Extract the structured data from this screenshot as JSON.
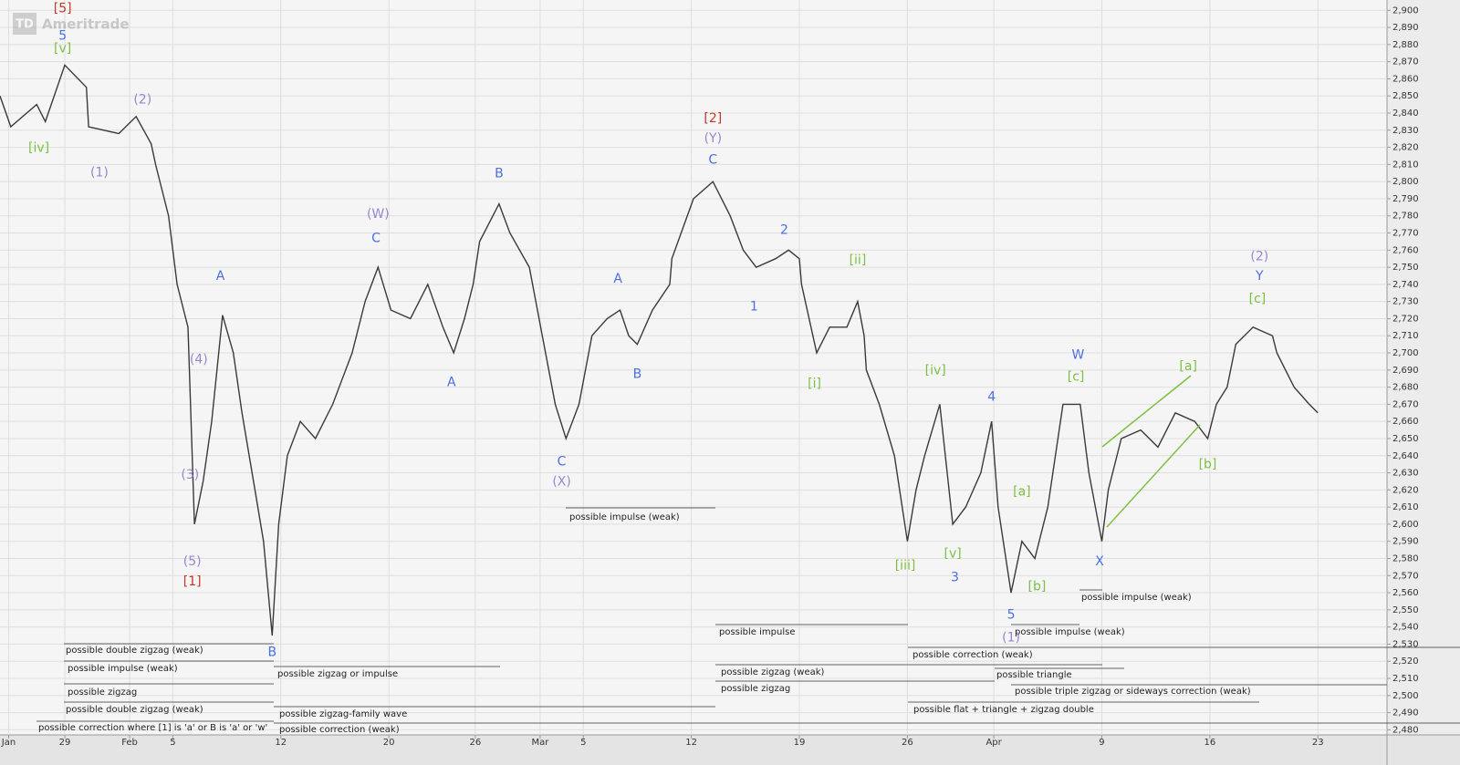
{
  "chart_data": {
    "type": "line",
    "logo": "Ameritrade",
    "logo_mark": "TD",
    "color": "#3a3a3a",
    "grid": true,
    "xlim": [
      -3,
      61.2
    ],
    "ylim": [
      2477,
      2906
    ],
    "xticks": [
      {
        "value": -2.6,
        "label": "Jan"
      },
      {
        "value": 0,
        "label": "29"
      },
      {
        "value": 3,
        "label": "Feb"
      },
      {
        "value": 5,
        "label": "5"
      },
      {
        "value": 10,
        "label": "12"
      },
      {
        "value": 15,
        "label": "20"
      },
      {
        "value": 19,
        "label": "26"
      },
      {
        "value": 22,
        "label": "Mar"
      },
      {
        "value": 24,
        "label": "5"
      },
      {
        "value": 29,
        "label": "12"
      },
      {
        "value": 34,
        "label": "19"
      },
      {
        "value": 39,
        "label": "26"
      },
      {
        "value": 43,
        "label": "Apr"
      },
      {
        "value": 48,
        "label": "9"
      },
      {
        "value": 53,
        "label": "16"
      },
      {
        "value": 58,
        "label": "23"
      }
    ],
    "yticks": [
      {
        "value": 2480,
        "label": "2,480"
      },
      {
        "value": 2490,
        "label": "2,490"
      },
      {
        "value": 2500,
        "label": "2,500"
      },
      {
        "value": 2510,
        "label": "2,510"
      },
      {
        "value": 2520,
        "label": "2,520"
      },
      {
        "value": 2530,
        "label": "2,530"
      },
      {
        "value": 2540,
        "label": "2,540"
      },
      {
        "value": 2550,
        "label": "2,550"
      },
      {
        "value": 2560,
        "label": "2,560"
      },
      {
        "value": 2570,
        "label": "2,570"
      },
      {
        "value": 2580,
        "label": "2,580"
      },
      {
        "value": 2590,
        "label": "2,590"
      },
      {
        "value": 2600,
        "label": "2,600"
      },
      {
        "value": 2610,
        "label": "2,610"
      },
      {
        "value": 2620,
        "label": "2,620"
      },
      {
        "value": 2630,
        "label": "2,630"
      },
      {
        "value": 2640,
        "label": "2,640"
      },
      {
        "value": 2650,
        "label": "2,650"
      },
      {
        "value": 2660,
        "label": "2,660"
      },
      {
        "value": 2670,
        "label": "2,670"
      },
      {
        "value": 2680,
        "label": "2,680"
      },
      {
        "value": 2690,
        "label": "2,690"
      },
      {
        "value": 2700,
        "label": "2,700"
      },
      {
        "value": 2710,
        "label": "2,710"
      },
      {
        "value": 2720,
        "label": "2,720"
      },
      {
        "value": 2730,
        "label": "2,730"
      },
      {
        "value": 2740,
        "label": "2,740"
      },
      {
        "value": 2750,
        "label": "2,750"
      },
      {
        "value": 2760,
        "label": "2,760"
      },
      {
        "value": 2770,
        "label": "2,770"
      },
      {
        "value": 2780,
        "label": "2,780"
      },
      {
        "value": 2790,
        "label": "2,790"
      },
      {
        "value": 2800,
        "label": "2,800"
      },
      {
        "value": 2810,
        "label": "2,810"
      },
      {
        "value": 2820,
        "label": "2,820"
      },
      {
        "value": 2830,
        "label": "2,830"
      },
      {
        "value": 2840,
        "label": "2,840"
      },
      {
        "value": 2850,
        "label": "2,850"
      },
      {
        "value": 2860,
        "label": "2,860"
      },
      {
        "value": 2870,
        "label": "2,870"
      },
      {
        "value": 2880,
        "label": "2,880"
      },
      {
        "value": 2890,
        "label": "2,890"
      },
      {
        "value": 2900,
        "label": "2,900"
      }
    ],
    "x": [
      -3.0,
      -2.5,
      -1.3,
      -0.9,
      0.0,
      1.0,
      1.1,
      2.5,
      3.3,
      4.0,
      4.2,
      4.8,
      5.2,
      5.7,
      6.0,
      6.4,
      6.8,
      7.3,
      7.8,
      8.2,
      8.8,
      9.2,
      9.6,
      9.9,
      10.3,
      10.9,
      11.6,
      12.4,
      13.3,
      13.9,
      14.5,
      15.1,
      16.0,
      16.8,
      17.5,
      18.0,
      18.5,
      18.9,
      19.2,
      20.1,
      20.6,
      21.5,
      22.1,
      22.7,
      23.2,
      23.8,
      24.4,
      25.1,
      25.7,
      26.1,
      26.5,
      27.2,
      28.0,
      28.1,
      29.1,
      30.0,
      30.8,
      31.4,
      32.0,
      32.9,
      33.5,
      34.0,
      34.1,
      34.8,
      35.4,
      36.2,
      36.7,
      37.0,
      37.1,
      37.7,
      38.4,
      39.0,
      39.4,
      39.8,
      40.5,
      41.1,
      41.7,
      42.4,
      42.9,
      43.2,
      43.8,
      44.3,
      44.9,
      45.5,
      46.2,
      47.0,
      47.4,
      48.0,
      48.3,
      48.9,
      49.8,
      50.6,
      51.4,
      52.3,
      52.9,
      53.3,
      53.8,
      54.2,
      55.0,
      55.9,
      56.1,
      56.9,
      57.6,
      58.0
    ],
    "values": [
      2850,
      2832,
      2845,
      2835,
      2868,
      2855,
      2832,
      2828,
      2838,
      2822,
      2810,
      2780,
      2740,
      2715,
      2600,
      2625,
      2660,
      2722,
      2700,
      2665,
      2620,
      2590,
      2535,
      2600,
      2640,
      2660,
      2650,
      2670,
      2700,
      2730,
      2750,
      2725,
      2720,
      2740,
      2715,
      2700,
      2720,
      2740,
      2765,
      2787,
      2770,
      2750,
      2710,
      2670,
      2650,
      2670,
      2710,
      2720,
      2725,
      2710,
      2705,
      2725,
      2740,
      2755,
      2790,
      2800,
      2780,
      2760,
      2750,
      2755,
      2760,
      2755,
      2740,
      2700,
      2715,
      2715,
      2730,
      2710,
      2690,
      2670,
      2640,
      2590,
      2620,
      2640,
      2670,
      2600,
      2610,
      2630,
      2660,
      2610,
      2560,
      2590,
      2580,
      2610,
      2670,
      2670,
      2630,
      2590,
      2620,
      2650,
      2655,
      2645,
      2665,
      2660,
      2650,
      2670,
      2680,
      2705,
      2715,
      2710,
      2700,
      2680,
      2670,
      2665
    ],
    "annotations": [
      {
        "text": "[5]",
        "x": -0.1,
        "y": 2901,
        "color": "#c0392b"
      },
      {
        "text": "5",
        "x": -0.1,
        "y": 2885.1,
        "color": "#4a6fe3"
      },
      {
        "text": "[v]",
        "x": -0.1,
        "y": 2877.6,
        "color": "#7dc142"
      },
      {
        "text": "[iv]",
        "x": -1.2,
        "y": 2819.6,
        "color": "#7dc142"
      },
      {
        "text": "(1)",
        "x": 1.6,
        "y": 2805.2,
        "color": "#9a86cf"
      },
      {
        "text": "(2)",
        "x": 3.6,
        "y": 2847.8,
        "color": "#9a86cf"
      },
      {
        "text": "A",
        "x": 7.2,
        "y": 2744.6,
        "color": "#4a6fe3"
      },
      {
        "text": "(4)",
        "x": 6.2,
        "y": 2696.1,
        "color": "#9a86cf"
      },
      {
        "text": "(3)",
        "x": 5.8,
        "y": 2628.6,
        "color": "#9a86cf"
      },
      {
        "text": "(5)",
        "x": 5.9,
        "y": 2578.0,
        "color": "#9a86cf"
      },
      {
        "text": "[1]",
        "x": 5.9,
        "y": 2566.3,
        "color": "#c0392b"
      },
      {
        "text": "B",
        "x": 9.6,
        "y": 2525.3,
        "color": "#4a6fe3"
      },
      {
        "text": "(W)",
        "x": 14.5,
        "y": 2780.8,
        "color": "#9a86cf"
      },
      {
        "text": "C",
        "x": 14.4,
        "y": 2766.9,
        "color": "#4a6fe3"
      },
      {
        "text": "A",
        "x": 17.9,
        "y": 2682.8,
        "color": "#4a6fe3"
      },
      {
        "text": "B",
        "x": 20.1,
        "y": 2804.7,
        "color": "#4a6fe3"
      },
      {
        "text": "C",
        "x": 23.0,
        "y": 2636.5,
        "color": "#4a6fe3"
      },
      {
        "text": "(X)",
        "x": 23.0,
        "y": 2624.8,
        "color": "#9a86cf"
      },
      {
        "text": "A",
        "x": 25.6,
        "y": 2743.0,
        "color": "#4a6fe3"
      },
      {
        "text": "B",
        "x": 26.5,
        "y": 2687.6,
        "color": "#4a6fe3"
      },
      {
        "text": "[2]",
        "x": 30.0,
        "y": 2836.7,
        "color": "#c0392b"
      },
      {
        "text": "(Y)",
        "x": 30.0,
        "y": 2825.0,
        "color": "#9a86cf"
      },
      {
        "text": "C",
        "x": 30.0,
        "y": 2812.7,
        "color": "#4a6fe3"
      },
      {
        "text": "2",
        "x": 33.3,
        "y": 2771.7,
        "color": "#4a6fe3"
      },
      {
        "text": "1",
        "x": 31.9,
        "y": 2727.0,
        "color": "#4a6fe3"
      },
      {
        "text": "[ii]",
        "x": 36.7,
        "y": 2754.1,
        "color": "#7dc142"
      },
      {
        "text": "[i]",
        "x": 34.7,
        "y": 2681.8,
        "color": "#7dc142"
      },
      {
        "text": "[iii]",
        "x": 38.9,
        "y": 2575.8,
        "color": "#7dc142"
      },
      {
        "text": "[iv]",
        "x": 40.3,
        "y": 2689.7,
        "color": "#7dc142"
      },
      {
        "text": "[v]",
        "x": 41.1,
        "y": 2582.7,
        "color": "#7dc142"
      },
      {
        "text": "3",
        "x": 41.2,
        "y": 2568.9,
        "color": "#4a6fe3"
      },
      {
        "text": "4",
        "x": 42.9,
        "y": 2674.3,
        "color": "#4a6fe3"
      },
      {
        "text": "5",
        "x": 43.8,
        "y": 2547.1,
        "color": "#4a6fe3"
      },
      {
        "text": "(1)",
        "x": 43.8,
        "y": 2533.8,
        "color": "#9a86cf"
      },
      {
        "text": "[a]",
        "x": 44.3,
        "y": 2618.9,
        "color": "#7dc142"
      },
      {
        "text": "[b]",
        "x": 45.0,
        "y": 2563.6,
        "color": "#7dc142"
      },
      {
        "text": "W",
        "x": 46.9,
        "y": 2698.8,
        "color": "#4a6fe3"
      },
      {
        "text": "[c]",
        "x": 46.8,
        "y": 2686.0,
        "color": "#7dc142"
      },
      {
        "text": "X",
        "x": 47.9,
        "y": 2578.0,
        "color": "#4a6fe3"
      },
      {
        "text": "[a]",
        "x": 52.0,
        "y": 2691.9,
        "color": "#7dc142"
      },
      {
        "text": "[b]",
        "x": 52.9,
        "y": 2634.9,
        "color": "#7dc142"
      },
      {
        "text": "(2)",
        "x": 55.3,
        "y": 2756.3,
        "color": "#9a86cf"
      },
      {
        "text": "Y",
        "x": 55.3,
        "y": 2744.6,
        "color": "#4a6fe3"
      },
      {
        "text": "[c]",
        "x": 55.2,
        "y": 2731.3,
        "color": "#7dc142"
      }
    ],
    "pattern_labels": [
      "possible double zigzag (weak)",
      "possible impulse (weak)",
      "possible zigzag",
      "possible double zigzag (weak)",
      "possible correction where [1] is 'a' or B is 'a' or 'w'",
      "possible zigzag or impulse",
      "possible zigzag-family wave",
      "possible correction (weak)",
      "possible impulse (weak)",
      "possible impulse",
      "possible zigzag (weak)",
      "possible zigzag",
      "possible correction (weak)",
      "possible flat + triangle + zigzag double",
      "possible triangle",
      "possible triple zigzag or sideways correction (weak)",
      "possible impulse (weak)",
      "possible impulse (weak)"
    ]
  }
}
